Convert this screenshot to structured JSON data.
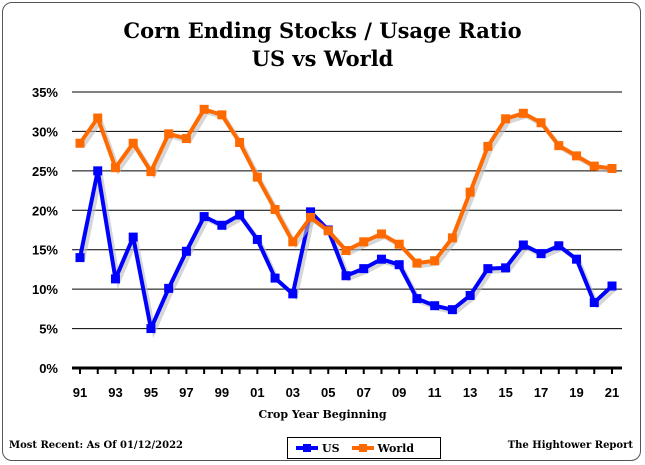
{
  "chart_data": {
    "type": "line",
    "title": "Corn Ending Stocks / Usage Ratio",
    "subtitle": "US vs World",
    "xlabel": "Crop Year Beginning",
    "ylabel": "",
    "x": [
      "91",
      "92",
      "93",
      "94",
      "95",
      "96",
      "97",
      "98",
      "99",
      "00",
      "01",
      "02",
      "03",
      "04",
      "05",
      "06",
      "07",
      "08",
      "09",
      "10",
      "11",
      "12",
      "13",
      "14",
      "15",
      "16",
      "17",
      "18",
      "19",
      "20",
      "21"
    ],
    "x_tick_labels": [
      "91",
      "93",
      "95",
      "97",
      "99",
      "01",
      "03",
      "05",
      "07",
      "09",
      "11",
      "13",
      "15",
      "17",
      "19",
      "21"
    ],
    "y_tick_labels": [
      "0%",
      "5%",
      "10%",
      "15%",
      "20%",
      "25%",
      "30%",
      "35%"
    ],
    "ylim": [
      0,
      35
    ],
    "grid": true,
    "legend": "bottom",
    "series": [
      {
        "name": "US",
        "color": "#0000ff",
        "values": [
          14.0,
          25.0,
          11.3,
          16.6,
          5.0,
          10.1,
          14.8,
          19.2,
          18.1,
          19.4,
          16.3,
          11.4,
          9.4,
          19.8,
          17.5,
          11.7,
          12.6,
          13.8,
          13.1,
          8.8,
          7.9,
          7.4,
          9.2,
          12.6,
          12.7,
          15.6,
          14.5,
          15.5,
          13.8,
          8.3,
          10.4
        ]
      },
      {
        "name": "World",
        "color": "#ff6a00",
        "values": [
          28.5,
          31.7,
          25.4,
          28.5,
          24.9,
          29.7,
          29.1,
          32.8,
          32.1,
          28.6,
          24.2,
          20.1,
          16.0,
          19.1,
          17.4,
          14.9,
          16.0,
          17.0,
          15.7,
          13.3,
          13.6,
          16.5,
          22.3,
          28.1,
          31.6,
          32.3,
          31.1,
          28.2,
          26.9,
          25.6,
          25.3
        ]
      }
    ]
  },
  "footer": {
    "most_recent": "Most Recent: As Of 01/12/2022",
    "source": "The Hightower Report"
  }
}
